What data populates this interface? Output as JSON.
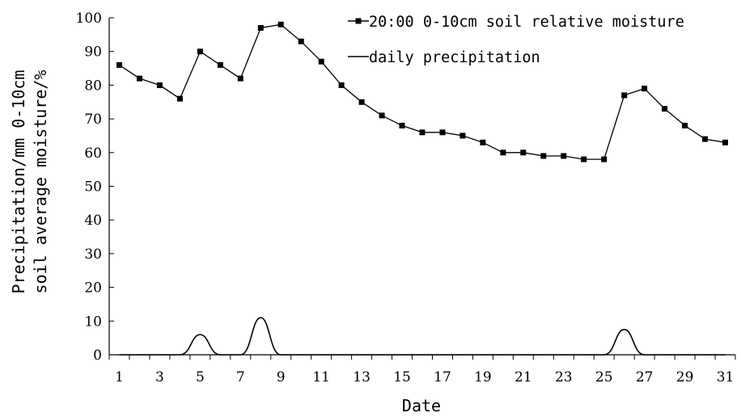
{
  "chart_data": {
    "type": "line",
    "xlabel": "Date",
    "ylabel_line1": "Precipitation/mm    0-10cm",
    "ylabel_line2": "soil average moisture/%",
    "ylim": [
      0,
      100
    ],
    "yticks": [
      0,
      10,
      20,
      30,
      40,
      50,
      60,
      70,
      80,
      90,
      100
    ],
    "xlim": [
      0.5,
      31.5
    ],
    "xticks": [
      1,
      3,
      5,
      7,
      9,
      11,
      13,
      15,
      17,
      19,
      21,
      23,
      25,
      27,
      29,
      31
    ],
    "grid": false,
    "legend_position": "top-right",
    "series": [
      {
        "name": "20:00 0-10cm soil relative moisture",
        "color": "#000000",
        "marker": "square",
        "x": [
          1,
          2,
          3,
          4,
          5,
          6,
          7,
          8,
          9,
          10,
          11,
          12,
          13,
          14,
          15,
          16,
          17,
          18,
          19,
          20,
          21,
          22,
          23,
          24,
          25,
          26,
          27,
          28,
          29,
          30,
          31
        ],
        "values": [
          86,
          82,
          80,
          76,
          90,
          86,
          82,
          97,
          98,
          93,
          87,
          80,
          75,
          71,
          68,
          66,
          66,
          65,
          63,
          60,
          60,
          59,
          59,
          58,
          58,
          77,
          79,
          73,
          68,
          64,
          63
        ]
      },
      {
        "name": "daily precipitation",
        "color": "#000000",
        "marker": "none",
        "x": [
          1,
          2,
          3,
          4,
          5,
          6,
          7,
          8,
          9,
          10,
          11,
          12,
          13,
          14,
          15,
          16,
          17,
          18,
          19,
          20,
          21,
          22,
          23,
          24,
          25,
          26,
          27,
          28,
          29,
          30,
          31
        ],
        "values": [
          0,
          0,
          0,
          0,
          6,
          0,
          0,
          11,
          0,
          0,
          0,
          0,
          0,
          0,
          0,
          0,
          0,
          0,
          0,
          0,
          0,
          0,
          0,
          0,
          0,
          7.5,
          0,
          0,
          0,
          0,
          0
        ]
      }
    ]
  }
}
